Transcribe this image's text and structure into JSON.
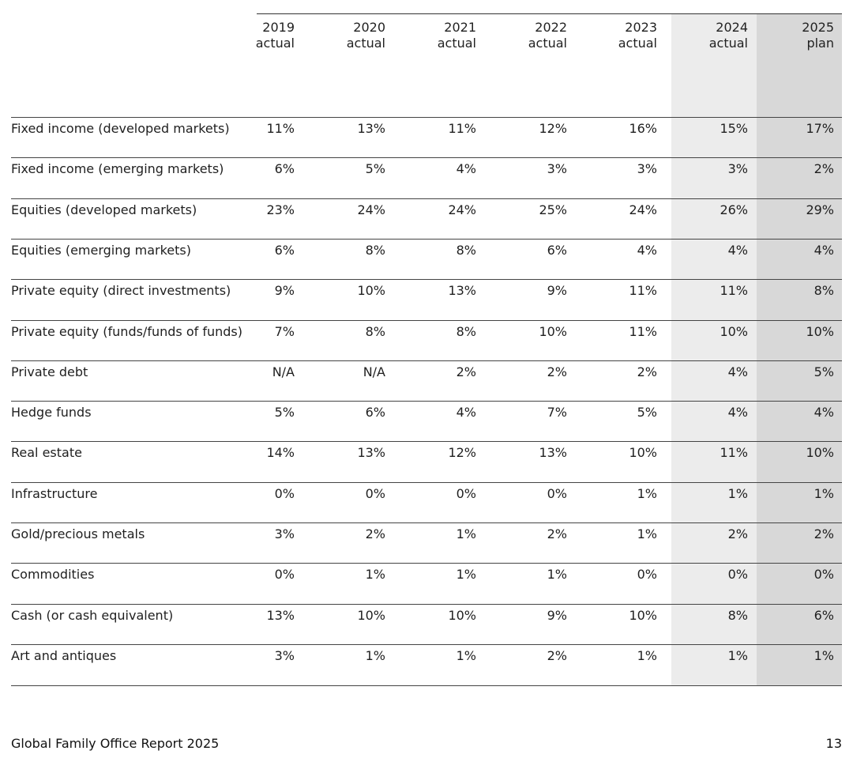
{
  "columns": [
    {
      "year": "2019",
      "kind": "actual"
    },
    {
      "year": "2020",
      "kind": "actual"
    },
    {
      "year": "2021",
      "kind": "actual"
    },
    {
      "year": "2022",
      "kind": "actual"
    },
    {
      "year": "2023",
      "kind": "actual"
    },
    {
      "year": "2024",
      "kind": "actual"
    },
    {
      "year": "2025",
      "kind": "plan"
    }
  ],
  "rows": [
    {
      "label": "Fixed income (developed markets)",
      "values": [
        "11%",
        "13%",
        "11%",
        "12%",
        "16%",
        "15%",
        "17%"
      ]
    },
    {
      "label": "Fixed income (emerging markets)",
      "values": [
        "6%",
        "5%",
        "4%",
        "3%",
        "3%",
        "3%",
        "2%"
      ]
    },
    {
      "label": "Equities (developed markets)",
      "values": [
        "23%",
        "24%",
        "24%",
        "25%",
        "24%",
        "26%",
        "29%"
      ]
    },
    {
      "label": "Equities (emerging markets)",
      "values": [
        "6%",
        "8%",
        "8%",
        "6%",
        "4%",
        "4%",
        "4%"
      ]
    },
    {
      "label": "Private equity (direct investments)",
      "values": [
        "9%",
        "10%",
        "13%",
        "9%",
        "11%",
        "11%",
        "8%"
      ]
    },
    {
      "label": "Private equity (funds/funds of funds)",
      "values": [
        "7%",
        "8%",
        "8%",
        "10%",
        "11%",
        "10%",
        "10%"
      ]
    },
    {
      "label": "Private debt",
      "values": [
        "N/A",
        "N/A",
        "2%",
        "2%",
        "2%",
        "4%",
        "5%"
      ]
    },
    {
      "label": "Hedge funds",
      "values": [
        "5%",
        "6%",
        "4%",
        "7%",
        "5%",
        "4%",
        "4%"
      ]
    },
    {
      "label": "Real estate",
      "values": [
        "14%",
        "13%",
        "12%",
        "13%",
        "10%",
        "11%",
        "10%"
      ]
    },
    {
      "label": "Infrastructure",
      "values": [
        "0%",
        "0%",
        "0%",
        "0%",
        "1%",
        "1%",
        "1%"
      ]
    },
    {
      "label": "Gold/precious metals",
      "values": [
        "3%",
        "2%",
        "1%",
        "2%",
        "1%",
        "2%",
        "2%"
      ]
    },
    {
      "label": "Commodities",
      "values": [
        "0%",
        "1%",
        "1%",
        "1%",
        "0%",
        "0%",
        "0%"
      ]
    },
    {
      "label": "Cash (or cash equivalent)",
      "values": [
        "13%",
        "10%",
        "10%",
        "9%",
        "10%",
        "8%",
        "6%"
      ]
    },
    {
      "label": "Art and antiques",
      "values": [
        "3%",
        "1%",
        "1%",
        "2%",
        "1%",
        "1%",
        "1%"
      ]
    }
  ],
  "footer": {
    "title": "Global Family Office Report 2025",
    "page_number": "13"
  }
}
